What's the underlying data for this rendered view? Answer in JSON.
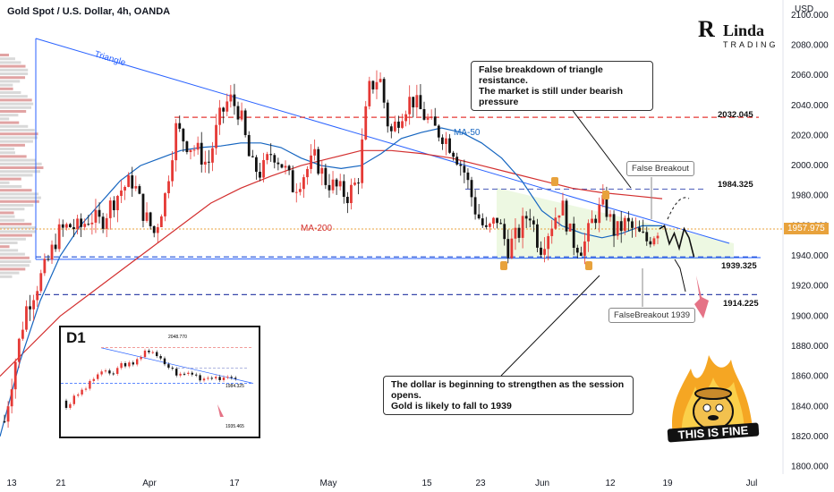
{
  "header": {
    "symbol": "Gold Spot / U.S. Dollar, 4h, OANDA",
    "currency": "USD"
  },
  "logo": {
    "big": "R",
    "name": "Linda",
    "sub": "TRADING"
  },
  "current_price": {
    "label": "1957.975",
    "value": 1957.975
  },
  "levels": [
    {
      "label": "2032.045",
      "value": 2032.045,
      "color": "#e53935"
    },
    {
      "label": "1984.325",
      "value": 1984.325,
      "color": "#5c6bc0"
    },
    {
      "label": "1939.325",
      "value": 1939.325,
      "color": "#1e4fd8"
    },
    {
      "label": "1914.225",
      "value": 1914.225,
      "color": "#3949ab"
    }
  ],
  "labels": {
    "triangle": "Triangle",
    "ma50": "MA-50",
    "ma200": "MA-200"
  },
  "notes": {
    "top": "False breakdown of triangle resistance.\nThe market is still under bearish pressure",
    "bottom": "The dollar is beginning to strengthen as the session opens.\nGold is likely to fall to 1939",
    "false_breakout": "False Breakout",
    "false_breakout_1939": "FalseBreakout 1939"
  },
  "inset": {
    "title": "D1",
    "levels": [
      "2048.770",
      "1984.325",
      "1935.465"
    ]
  },
  "sticker": {
    "text": "THIS IS FINE"
  },
  "colors": {
    "up": "#e53935",
    "down": "#111111",
    "ma50": "#1565c0",
    "ma200": "#d32f2f",
    "triangle": "#2962ff",
    "accent": "#e8a23c"
  },
  "chart_data": {
    "type": "candlestick",
    "title": "Gold Spot / U.S. Dollar, 4h, OANDA",
    "ylabel": "USD",
    "ylim": [
      1795,
      2110
    ],
    "yticks": [
      1800,
      1820,
      1840,
      1860,
      1880,
      1900,
      1920,
      1940,
      1960,
      1980,
      2000,
      2020,
      2040,
      2060,
      2080,
      2100
    ],
    "ytick_labels": [
      "1800.000",
      "1820.000",
      "1840.000",
      "1860.000",
      "1880.000",
      "1900.000",
      "1920.000",
      "1940.000",
      "1960.000",
      "1980.000",
      "2000.000",
      "2020.000",
      "2040.000",
      "2060.000",
      "2080.000",
      "2100.000"
    ],
    "xtick_labels": [
      "13",
      "21",
      "Apr",
      "17",
      "May",
      "15",
      "23",
      "Jun",
      "12",
      "19",
      "Jul"
    ],
    "price_path": [
      1830,
      1870,
      1905,
      1920,
      1935,
      1955,
      1960,
      1958,
      1966,
      1962,
      1975,
      1985,
      1990,
      1968,
      1955,
      1980,
      2025,
      2015,
      2010,
      2000,
      2030,
      2045,
      2035,
      2000,
      1995,
      2010,
      2000,
      1985,
      1995,
      2005,
      1990,
      1985,
      1980,
      1990,
      2050,
      2060,
      2020,
      2035,
      2045,
      2035,
      2025,
      2020,
      2010,
      1995,
      1970,
      1955,
      1965,
      1945,
      1955,
      1970,
      1945,
      1960,
      1975,
      1950,
      1945,
      1965,
      1975,
      1955,
      1962,
      1955,
      1950,
      1958
    ],
    "ma50_path": [
      1820,
      1870,
      1910,
      1940,
      1960,
      1975,
      1990,
      2000,
      2005,
      2010,
      2012,
      2013,
      2015,
      2015,
      2012,
      2005,
      2000,
      1998,
      2000,
      2008,
      2018,
      2022,
      2025,
      2022,
      2015,
      2005,
      1990,
      1970,
      1960,
      1955,
      1952,
      1955,
      1960,
      1960
    ],
    "ma200_path": [
      1860,
      1880,
      1900,
      1915,
      1930,
      1945,
      1960,
      1975,
      1985,
      1993,
      2000,
      2005,
      2010,
      2010,
      2008,
      2005,
      2000,
      1995,
      1990,
      1985,
      1982,
      1980,
      1978
    ],
    "projection": [
      1957.975,
      1960,
      1948,
      1955,
      1945,
      1958,
      1952,
      1939.325
    ]
  }
}
